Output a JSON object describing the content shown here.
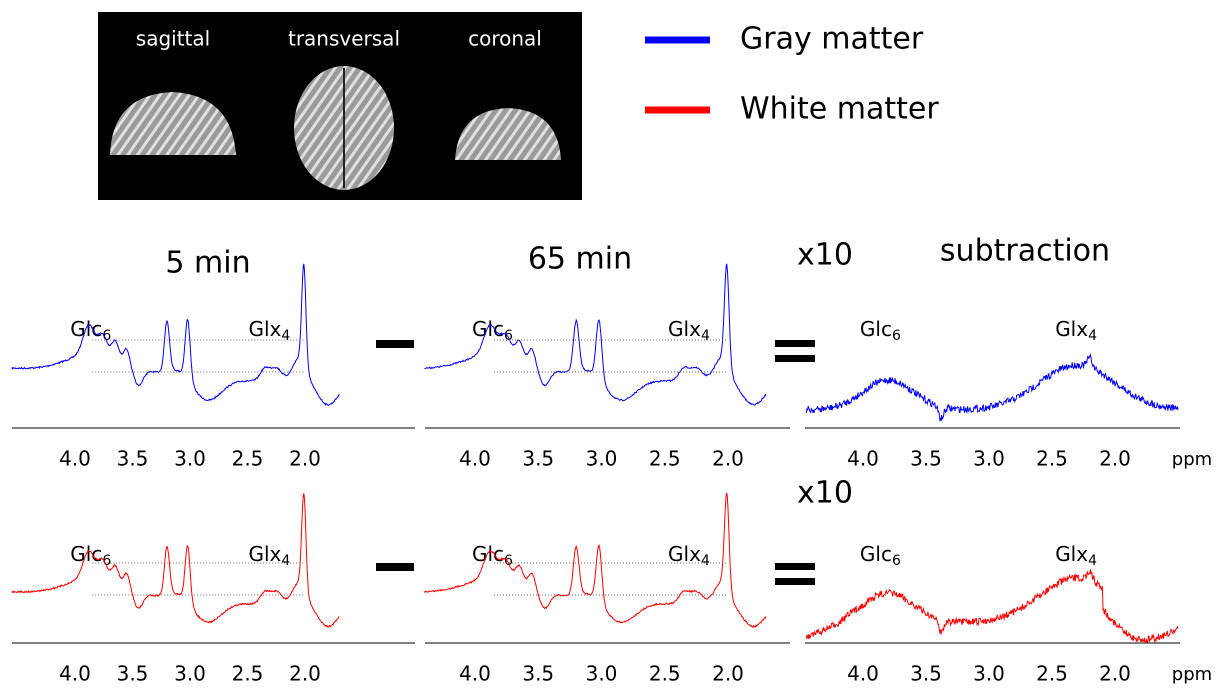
{
  "brain_views": [
    "sagittal",
    "transversal",
    "coronal"
  ],
  "legend": [
    {
      "label": "Gray matter",
      "color": "#0000ff"
    },
    {
      "label": "White matter",
      "color": "#ff0000"
    }
  ],
  "column_titles": [
    "5 min",
    "65 min",
    "subtraction"
  ],
  "peak_labels": [
    {
      "base": "Glc",
      "sub": "6"
    },
    {
      "base": "Glx",
      "sub": "4"
    }
  ],
  "scale_labels": [
    "x10",
    "x10"
  ],
  "x_ticks": [
    {
      "value": 4,
      "label": "4.0"
    },
    {
      "value": 3.5,
      "label": "3.5"
    },
    {
      "value": 3,
      "label": "3.0"
    },
    {
      "value": 2.5,
      "label": "2.5"
    },
    {
      "value": 2,
      "label": "2.0"
    }
  ],
  "x_unit": "ppm"
}
